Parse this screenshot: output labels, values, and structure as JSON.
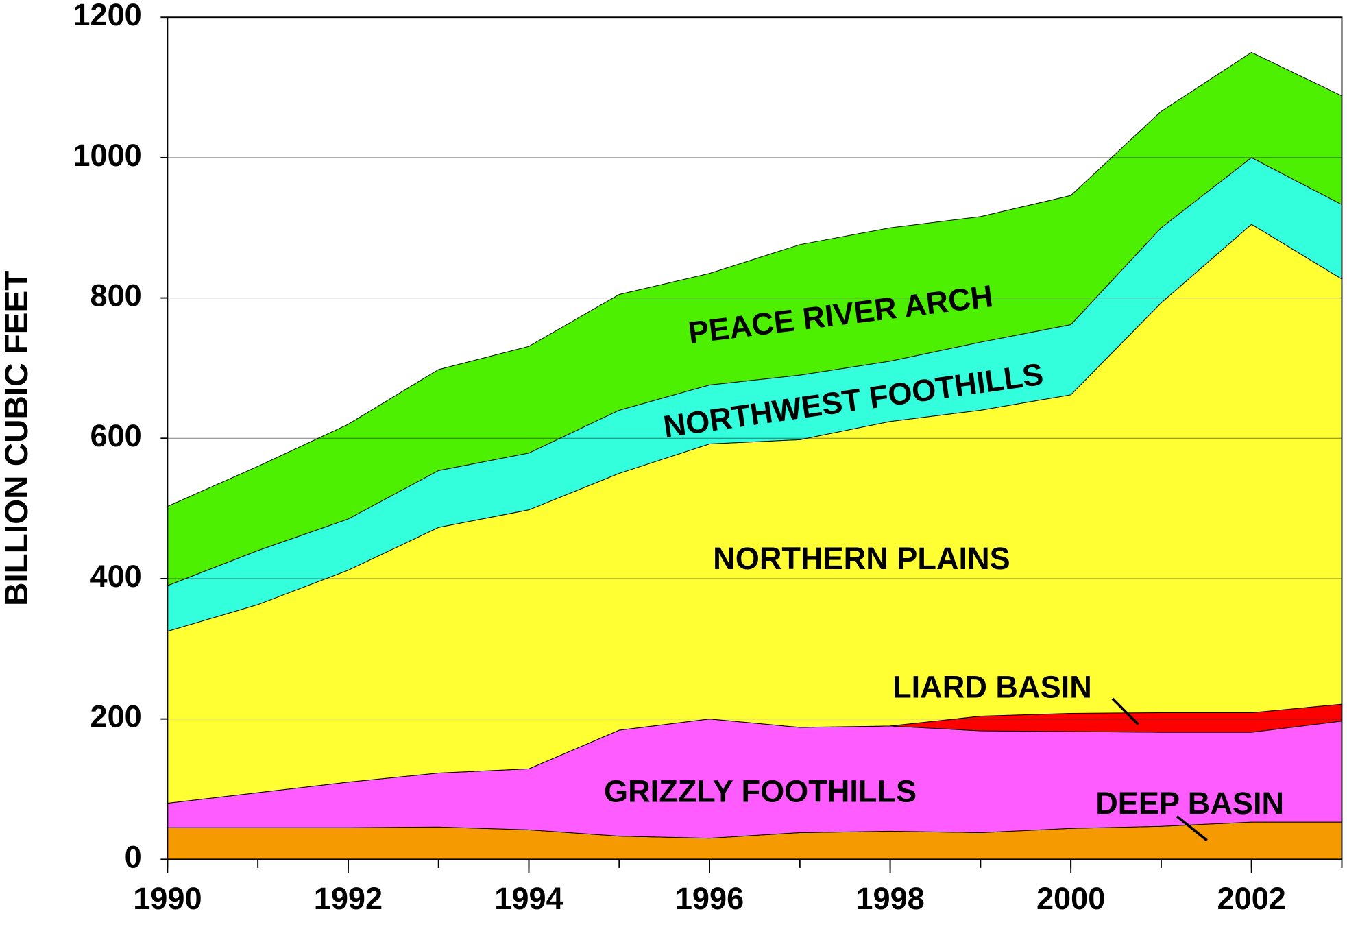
{
  "chart_data": {
    "type": "stacked_area",
    "y_label": "BILLION CUBIC FEET",
    "x": [
      1990,
      1991,
      1992,
      1993,
      1994,
      1995,
      1996,
      1997,
      1998,
      1999,
      2000,
      2001,
      2002,
      2003
    ],
    "series": [
      {
        "name": "DEEP BASIN",
        "color": "#f59a00",
        "values": [
          45,
          45,
          45,
          46,
          42,
          33,
          30,
          38,
          40,
          38,
          44,
          47,
          53,
          53
        ]
      },
      {
        "name": "GRIZZLY FOOTHILLS",
        "color": "#ff5cff",
        "values": [
          35,
          50,
          65,
          77,
          87,
          151,
          170,
          150,
          150,
          145,
          138,
          134,
          128,
          144
        ]
      },
      {
        "name": "LIARD BASIN",
        "color": "#ff0000",
        "values": [
          0,
          0,
          0,
          0,
          0,
          0,
          0,
          0,
          0,
          21,
          26,
          28,
          28,
          24
        ]
      },
      {
        "name": "NORTHERN PLAINS",
        "color": "#ffff33",
        "values": [
          245,
          268,
          302,
          350,
          369,
          366,
          392,
          410,
          434,
          436,
          454,
          584,
          696,
          606
        ]
      },
      {
        "name": "NORTHWEST FOOTHILLS",
        "color": "#33ffdd",
        "values": [
          65,
          77,
          73,
          81,
          81,
          90,
          84,
          92,
          86,
          97,
          100,
          107,
          95,
          106
        ]
      },
      {
        "name": "PEACE RIVER ARCH",
        "color": "#4cf000",
        "values": [
          113,
          120,
          135,
          144,
          152,
          165,
          159,
          186,
          190,
          179,
          184,
          166,
          150,
          155
        ]
      }
    ],
    "xlim": [
      1990,
      2003
    ],
    "xticks": [
      1990,
      1992,
      1994,
      1996,
      1998,
      2000,
      2002
    ],
    "ylim": [
      0,
      1200
    ],
    "yticks": [
      0,
      200,
      400,
      600,
      800,
      1000,
      1200
    ],
    "grid": true
  }
}
